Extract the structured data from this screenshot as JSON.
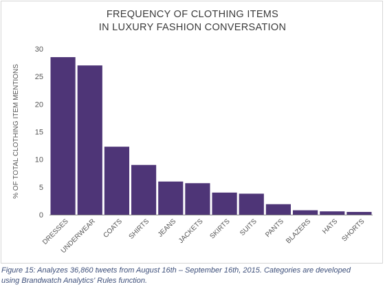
{
  "chart_data": {
    "type": "bar",
    "title_lines": [
      "FREQUENCY OF CLOTHING ITEMS",
      "IN LUXURY FASHION CONVERSATION"
    ],
    "xlabel": "",
    "ylabel": "% OF TOTAL CLOTHING ITEM MENTIONS",
    "categories": [
      "DRESSES",
      "UNDERWEAR",
      "COATS",
      "SHIRTS",
      "JEANS",
      "JACKETS",
      "SKIRTS",
      "SUITS",
      "PANTS",
      "BLAZERS",
      "HATS",
      "SHORTS"
    ],
    "values": [
      28.5,
      27.0,
      12.3,
      9.0,
      6.0,
      5.7,
      4.0,
      3.8,
      1.9,
      0.8,
      0.6,
      0.5
    ],
    "ylim": [
      0,
      30
    ],
    "yticks": [
      0,
      5,
      10,
      15,
      20,
      25,
      30
    ],
    "grid": false,
    "legend": "none",
    "bar_color": "#4e3577"
  },
  "caption_lines": [
    "Figure 15: Analyzes 36,860 tweets from August 16th – September 16th, 2015. Categories are developed",
    "using Brandwatch Analytics' Rules function."
  ]
}
